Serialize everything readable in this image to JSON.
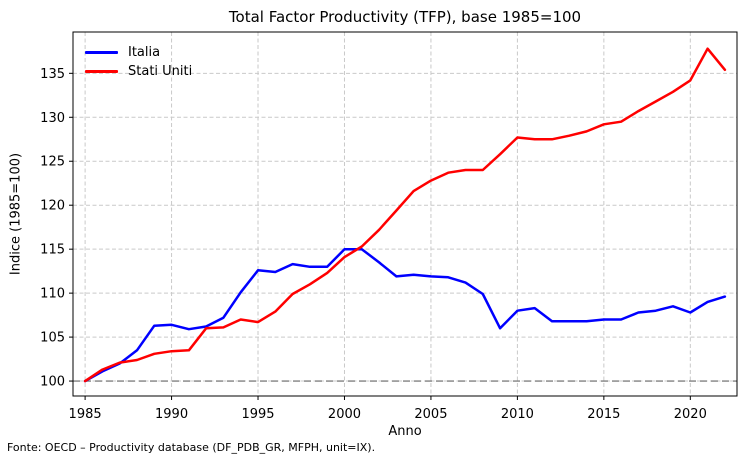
{
  "footer": "Fonte: OECD – Productivity database (DF_PDB_GR, MFPH, unit=IX).",
  "colors": {
    "italia_line": "#0000ff",
    "stati_uniti_line": "#ff0000",
    "grid": "#c9c9c9",
    "baseline": "#808080",
    "spine": "#000000",
    "text": "#000000"
  },
  "chart_data": {
    "type": "line",
    "title": "Total Factor Productivity (TFP), base 1985=100",
    "xlabel": "Anno",
    "ylabel": "Indice (1985=100)",
    "grid": true,
    "legend_position": "upper left",
    "xlim": [
      1984.3,
      2022.7
    ],
    "ylim": [
      98.3,
      139.7
    ],
    "xticks": [
      1985,
      1990,
      1995,
      2000,
      2005,
      2010,
      2015,
      2020
    ],
    "yticks": [
      100,
      105,
      110,
      115,
      120,
      125,
      130,
      135
    ],
    "baseline": {
      "value": 100,
      "color": "#808080",
      "style": "dashed"
    },
    "x": [
      1985,
      1986,
      1987,
      1988,
      1989,
      1990,
      1991,
      1992,
      1993,
      1994,
      1995,
      1996,
      1997,
      1998,
      1999,
      2000,
      2001,
      2002,
      2003,
      2004,
      2005,
      2006,
      2007,
      2008,
      2009,
      2010,
      2011,
      2012,
      2013,
      2014,
      2015,
      2016,
      2017,
      2018,
      2019,
      2020,
      2021,
      2022
    ],
    "series": [
      {
        "name": "Italia",
        "color": "#0000ff",
        "values": [
          100.0,
          101.1,
          102.0,
          103.5,
          106.3,
          106.4,
          105.9,
          106.2,
          107.2,
          110.1,
          112.6,
          112.4,
          113.3,
          113.0,
          113.0,
          115.0,
          115.0,
          113.5,
          111.9,
          112.1,
          111.9,
          111.8,
          111.2,
          109.9,
          106.0,
          108.0,
          108.3,
          106.8,
          106.8,
          106.8,
          107.0,
          107.0,
          107.8,
          108.0,
          108.5,
          107.8,
          109.0,
          109.6
        ]
      },
      {
        "name": "Stati Uniti",
        "color": "#ff0000",
        "values": [
          100.0,
          101.3,
          102.1,
          102.4,
          103.1,
          103.4,
          103.5,
          106.0,
          106.1,
          107.0,
          106.7,
          107.9,
          109.9,
          111.0,
          112.3,
          114.1,
          115.3,
          117.2,
          119.4,
          121.6,
          122.8,
          123.7,
          124.0,
          124.0,
          125.8,
          127.7,
          127.5,
          127.5,
          127.9,
          128.4,
          129.2,
          129.5,
          130.7,
          131.8,
          132.9,
          134.2,
          137.8,
          135.4
        ]
      }
    ]
  }
}
